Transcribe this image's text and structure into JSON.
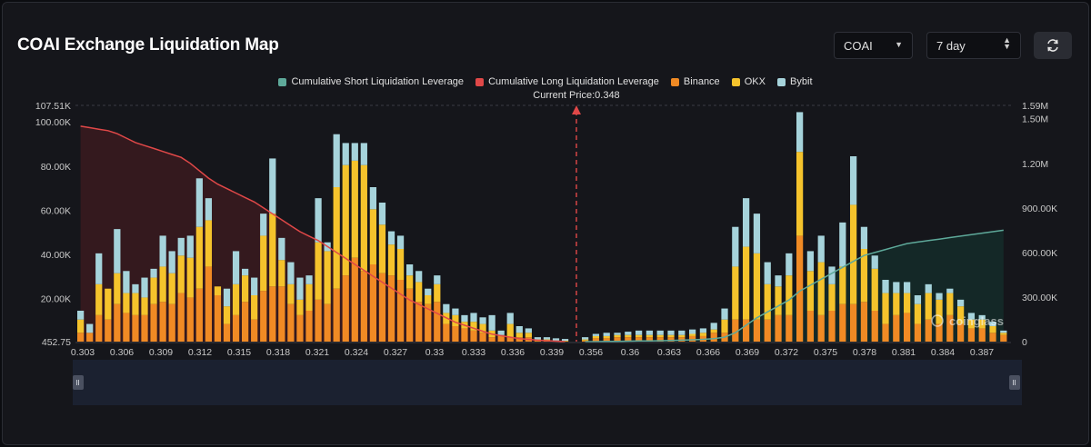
{
  "header": {
    "title": "COAI Exchange Liquidation Map",
    "symbol_select": "COAI",
    "range_select": "7 day",
    "refresh_icon": "refresh-icon"
  },
  "legend": [
    {
      "label": "Cumulative Short Liquidation Leverage",
      "color": "#5ea99a"
    },
    {
      "label": "Cumulative Long Liquidation Leverage",
      "color": "#e04848"
    },
    {
      "label": "Binance",
      "color": "#f08a24"
    },
    {
      "label": "OKX",
      "color": "#f5c32c"
    },
    {
      "label": "Bybit",
      "color": "#a6d3db"
    }
  ],
  "current_price_label": "Current Price:0.348",
  "watermark": "coinglass",
  "colors": {
    "binance": "#f08a24",
    "okx": "#f5c32c",
    "bybit": "#a6d3db",
    "long": "#e04848",
    "short": "#5ea99a",
    "long_fill": "#3a1a1f",
    "short_fill": "#142a29"
  },
  "chart_data": {
    "type": "bar",
    "x_tick_labels": [
      "0.303",
      "0.306",
      "0.309",
      "0.312",
      "0.315",
      "0.318",
      "0.321",
      "0.324",
      "0.327",
      "0.33",
      "0.333",
      "0.336",
      "0.339",
      "0.356",
      "0.36",
      "0.363",
      "0.366",
      "0.369",
      "0.372",
      "0.375",
      "0.378",
      "0.381",
      "0.384",
      "0.387"
    ],
    "y_left_ticks": [
      "452.75",
      "20.00K",
      "40.00K",
      "60.00K",
      "80.00K",
      "100.00K",
      "107.51K"
    ],
    "y_right_ticks": [
      "0",
      "300.00K",
      "600.00K",
      "900.00K",
      "1.20M",
      "1.50M",
      "1.59M"
    ],
    "ylim_left": [
      452.75,
      107510
    ],
    "ylim_right": [
      0,
      1590000
    ],
    "current_price": 0.348,
    "long_side_bars": {
      "binance": [
        4,
        4,
        12,
        10,
        17,
        13,
        12,
        12,
        17,
        18,
        17,
        22,
        20,
        24,
        34,
        21,
        8,
        12,
        18,
        10,
        23,
        25,
        25,
        17,
        12,
        14,
        19,
        17,
        24,
        30,
        38,
        32,
        35,
        31,
        30,
        28,
        24,
        18,
        17,
        18,
        8,
        7,
        6,
        5,
        4,
        2,
        3,
        2,
        2,
        2,
        0.5,
        0.5,
        0.2,
        0.2
      ],
      "okx": [
        6,
        0,
        14,
        14,
        14,
        9,
        10,
        8,
        12,
        16,
        14,
        17,
        18,
        28,
        21,
        4,
        8,
        14,
        12,
        11,
        25,
        33,
        12,
        9,
        7,
        12,
        26,
        24,
        46,
        50,
        44,
        48,
        25,
        22,
        14,
        14,
        6,
        9,
        4,
        8,
        5,
        5,
        3,
        4,
        4,
        3,
        0,
        6,
        2,
        2,
        0.5,
        0.5,
        0.3,
        0.2
      ],
      "bybit": [
        4,
        4,
        14,
        0,
        20,
        10,
        4,
        9,
        4,
        14,
        10,
        8,
        10,
        22,
        10,
        0,
        8,
        15,
        3,
        8,
        10,
        25,
        10,
        10,
        10,
        4,
        20,
        4,
        24,
        10,
        8,
        10,
        10,
        10,
        6,
        6,
        5,
        5,
        3,
        4,
        4,
        3,
        3,
        4,
        3,
        7,
        2,
        5,
        3,
        2,
        1,
        1,
        1,
        0.8
      ]
    },
    "short_side_bars": {
      "binance": [
        0.5,
        1.5,
        1.5,
        2,
        2,
        2,
        2,
        2,
        2,
        2,
        2.5,
        2.5,
        4,
        4,
        10,
        10,
        10,
        10,
        12,
        12,
        48,
        14,
        12,
        14,
        17,
        17,
        18,
        14,
        8,
        12,
        13,
        8,
        10,
        8,
        12,
        8,
        6,
        6,
        4,
        3
      ],
      "okx": [
        0.5,
        1,
        1,
        1,
        1,
        1,
        1,
        1,
        1,
        1,
        1,
        1.5,
        1.5,
        6,
        24,
        33,
        30,
        16,
        13,
        18,
        38,
        18,
        24,
        12,
        17,
        45,
        24,
        19,
        14,
        10,
        9,
        9,
        12,
        11,
        10,
        8,
        4,
        4,
        3,
        1
      ],
      "bybit": [
        1,
        1,
        1.5,
        1,
        1.5,
        2,
        2,
        2,
        2,
        2,
        2,
        2,
        3,
        5,
        18,
        22,
        18,
        10,
        5,
        10,
        18,
        9,
        12,
        8,
        20,
        22,
        10,
        6,
        6,
        5,
        5,
        4,
        4,
        3,
        2,
        3,
        3,
        2,
        2,
        1
      ]
    },
    "cumulative_long_right_axis": [
      1.45,
      1.44,
      1.43,
      1.42,
      1.4,
      1.37,
      1.34,
      1.32,
      1.3,
      1.28,
      1.26,
      1.24,
      1.2,
      1.15,
      1.1,
      1.06,
      1.03,
      1.0,
      0.97,
      0.94,
      0.9,
      0.86,
      0.82,
      0.78,
      0.74,
      0.71,
      0.68,
      0.64,
      0.6,
      0.56,
      0.52,
      0.48,
      0.44,
      0.4,
      0.36,
      0.32,
      0.28,
      0.25,
      0.22,
      0.19,
      0.16,
      0.13,
      0.11,
      0.09,
      0.07,
      0.05,
      0.04,
      0.03,
      0.02,
      0.015,
      0.01,
      0.006,
      0.003,
      0.0
    ],
    "cumulative_short_right_axis": [
      0,
      0,
      0.001,
      0.002,
      0.003,
      0.004,
      0.005,
      0.006,
      0.008,
      0.01,
      0.012,
      0.015,
      0.02,
      0.03,
      0.06,
      0.11,
      0.16,
      0.2,
      0.24,
      0.28,
      0.34,
      0.38,
      0.42,
      0.46,
      0.5,
      0.54,
      0.58,
      0.6,
      0.62,
      0.64,
      0.66,
      0.67,
      0.68,
      0.69,
      0.7,
      0.71,
      0.72,
      0.73,
      0.74,
      0.75
    ],
    "cumulative_unit": "M"
  }
}
